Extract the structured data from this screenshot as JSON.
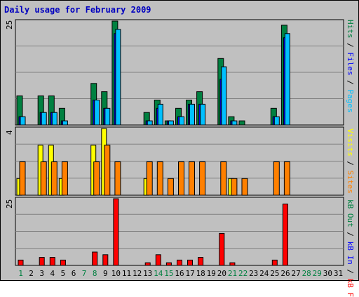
{
  "title": "Daily usage for February 2009",
  "colors": {
    "hits": "#008040",
    "files": "#0000ff",
    "pages": "#00c0ff",
    "visits": "#ffff00",
    "sites": "#ff8000",
    "kbin": "#00ff00",
    "kbout": "#0000ff",
    "kbf": "#ff0000",
    "weekend": "#008040",
    "weekday": "#000000"
  },
  "panels": {
    "top": {
      "ymax_label": "25"
    },
    "middle": {
      "ymax_label": "4"
    },
    "bottom": {
      "ymax_label": "25"
    }
  },
  "legend": {
    "top": [
      {
        "text": "Pages",
        "color": "#00c0ff"
      },
      {
        "text": " / ",
        "color": "#000000"
      },
      {
        "text": "Files",
        "color": "#0000ff"
      },
      {
        "text": " / ",
        "color": "#000000"
      },
      {
        "text": "Hits",
        "color": "#008040"
      }
    ],
    "middle": [
      {
        "text": "Sites",
        "color": "#ff8000"
      },
      {
        "text": " / ",
        "color": "#000000"
      },
      {
        "text": "Visits",
        "color": "#ffff00"
      }
    ],
    "bottom": [
      {
        "text": "kB F",
        "color": "#ff0000"
      },
      {
        "text": " / ",
        "color": "#000000"
      },
      {
        "text": "kB In",
        "color": "#0000ff"
      },
      {
        "text": " / ",
        "color": "#000000"
      },
      {
        "text": "kB Out",
        "color": "#008040"
      }
    ]
  },
  "chart_data": {
    "type": "bar",
    "title": "Daily usage for February 2009",
    "categories": [
      "1",
      "2",
      "3",
      "4",
      "5",
      "6",
      "7",
      "8",
      "9",
      "10",
      "11",
      "12",
      "13",
      "14",
      "15",
      "16",
      "17",
      "18",
      "19",
      "20",
      "21",
      "22",
      "23",
      "24",
      "25",
      "26",
      "27",
      "28",
      "29",
      "30",
      "31"
    ],
    "weekend_days": [
      "1",
      "7",
      "8",
      "14",
      "15",
      "21",
      "22",
      "28",
      "29"
    ],
    "panels": [
      {
        "name": "hits-files-pages",
        "ymax": 25,
        "series": [
          {
            "name": "Hits",
            "values": [
              7,
              0,
              7,
              7,
              4,
              0,
              0,
              10,
              8,
              25,
              0,
              0,
              3,
              6,
              1,
              4,
              6,
              8,
              0,
              16,
              2,
              1,
              0,
              0,
              4,
              24,
              0,
              0,
              0,
              0,
              0
            ]
          },
          {
            "name": "Files",
            "values": [
              2,
              0,
              3,
              3,
              1,
              0,
              0,
              6,
              4,
              22,
              0,
              0,
              1,
              4,
              1,
              2,
              5,
              5,
              0,
              11,
              1,
              0,
              0,
              0,
              2,
              21,
              0,
              0,
              0,
              0,
              0
            ]
          },
          {
            "name": "Pages",
            "values": [
              2,
              0,
              3,
              3,
              1,
              0,
              0,
              6,
              4,
              23,
              0,
              0,
              1,
              5,
              1,
              2,
              5,
              5,
              0,
              14,
              1,
              0,
              0,
              0,
              2,
              22,
              0,
              0,
              0,
              0,
              0
            ]
          }
        ]
      },
      {
        "name": "visits-sites",
        "ymax": 4,
        "series": [
          {
            "name": "Visits",
            "values": [
              1,
              0,
              3,
              3,
              1,
              0,
              0,
              3,
              4,
              0,
              0,
              0,
              1,
              0,
              0,
              0,
              0,
              0,
              0,
              0,
              1,
              0,
              0,
              0,
              0,
              0,
              0,
              0,
              0,
              0,
              0
            ]
          },
          {
            "name": "Sites",
            "values": [
              2,
              0,
              2,
              2,
              2,
              0,
              0,
              2,
              3,
              2,
              0,
              0,
              2,
              2,
              1,
              2,
              2,
              2,
              0,
              2,
              1,
              1,
              0,
              0,
              2,
              2,
              0,
              0,
              0,
              0,
              0
            ]
          }
        ]
      },
      {
        "name": "kbytes",
        "ymax": 25,
        "series": [
          {
            "name": "kB F",
            "values": [
              2,
              0,
              3,
              3,
              2,
              0,
              0,
              5,
              4,
              25,
              0,
              0,
              1,
              4,
              1,
              2,
              2,
              3,
              0,
              12,
              1,
              0,
              0,
              0,
              2,
              23,
              0,
              0,
              0,
              0,
              0
            ]
          },
          {
            "name": "kB In",
            "values": [
              0,
              0,
              0,
              0,
              0,
              0,
              0,
              0,
              0,
              0,
              0,
              0,
              0,
              0,
              0,
              0,
              0,
              0,
              0,
              0,
              0,
              0,
              0,
              0,
              0,
              0,
              0,
              0,
              0,
              0,
              0
            ]
          },
          {
            "name": "kB Out",
            "values": [
              0,
              0,
              0,
              0,
              0,
              0,
              0,
              0,
              0,
              0,
              0,
              0,
              0,
              0,
              0,
              0,
              0,
              0,
              0,
              0,
              0,
              0,
              0,
              0,
              0,
              0,
              0,
              0,
              0,
              0,
              0
            ]
          }
        ]
      }
    ]
  }
}
